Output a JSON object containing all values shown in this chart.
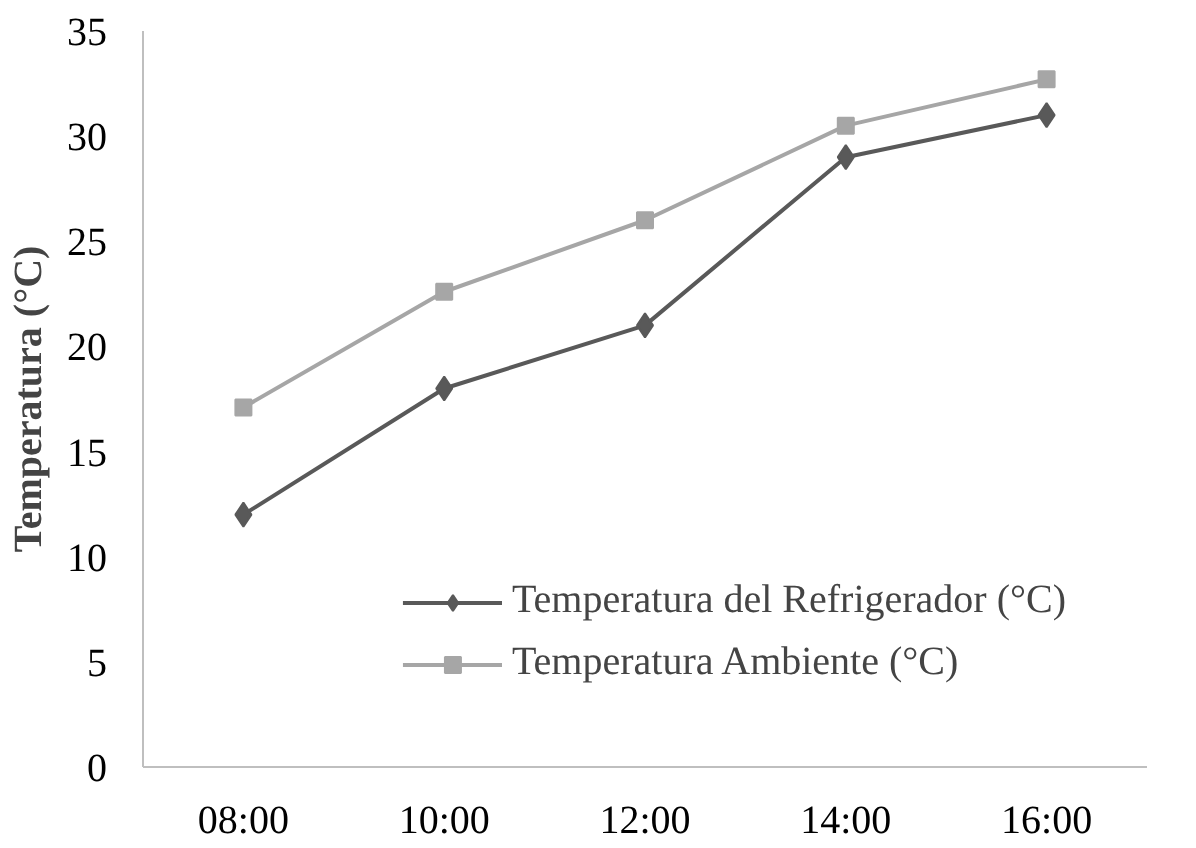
{
  "chart_data": {
    "type": "line",
    "ylabel": "Temperatura (°C)",
    "categories": [
      "08:00",
      "10:00",
      "12:00",
      "14:00",
      "16:00"
    ],
    "series": [
      {
        "name": "Temperatura del Refrigerador (°C)",
        "color": "#595959",
        "marker": "diamond",
        "values": [
          12,
          18,
          21,
          29,
          31
        ]
      },
      {
        "name": "Temperatura Ambiente (°C)",
        "color": "#a6a6a6",
        "marker": "square",
        "values": [
          17.1,
          22.6,
          26,
          30.5,
          32.7
        ]
      }
    ],
    "ylim": [
      0,
      35
    ],
    "yticks": [
      0,
      5,
      10,
      15,
      20,
      25,
      30,
      35
    ],
    "grid": false,
    "legend": "bottom right",
    "line_style": "solid"
  }
}
